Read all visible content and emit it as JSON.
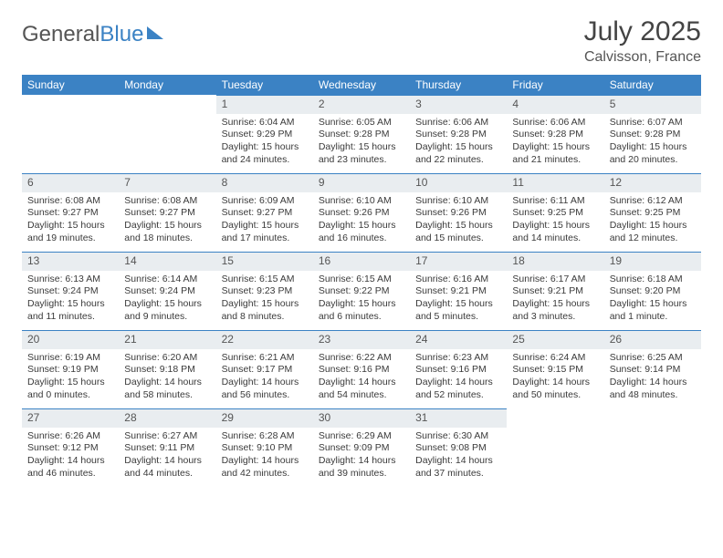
{
  "brand": {
    "part1": "General",
    "part2": "Blue"
  },
  "title": "July 2025",
  "location": "Calvisson, France",
  "colors": {
    "header_bg": "#3b82c4",
    "daynum_bg": "#e9edf0",
    "row_border": "#3b82c4",
    "text": "#3a3a3a",
    "page_bg": "#ffffff"
  },
  "weekdays": [
    "Sunday",
    "Monday",
    "Tuesday",
    "Wednesday",
    "Thursday",
    "Friday",
    "Saturday"
  ],
  "weeks": [
    [
      null,
      null,
      {
        "n": "1",
        "sr": "6:04 AM",
        "ss": "9:29 PM",
        "dl": "15 hours and 24 minutes."
      },
      {
        "n": "2",
        "sr": "6:05 AM",
        "ss": "9:28 PM",
        "dl": "15 hours and 23 minutes."
      },
      {
        "n": "3",
        "sr": "6:06 AM",
        "ss": "9:28 PM",
        "dl": "15 hours and 22 minutes."
      },
      {
        "n": "4",
        "sr": "6:06 AM",
        "ss": "9:28 PM",
        "dl": "15 hours and 21 minutes."
      },
      {
        "n": "5",
        "sr": "6:07 AM",
        "ss": "9:28 PM",
        "dl": "15 hours and 20 minutes."
      }
    ],
    [
      {
        "n": "6",
        "sr": "6:08 AM",
        "ss": "9:27 PM",
        "dl": "15 hours and 19 minutes."
      },
      {
        "n": "7",
        "sr": "6:08 AM",
        "ss": "9:27 PM",
        "dl": "15 hours and 18 minutes."
      },
      {
        "n": "8",
        "sr": "6:09 AM",
        "ss": "9:27 PM",
        "dl": "15 hours and 17 minutes."
      },
      {
        "n": "9",
        "sr": "6:10 AM",
        "ss": "9:26 PM",
        "dl": "15 hours and 16 minutes."
      },
      {
        "n": "10",
        "sr": "6:10 AM",
        "ss": "9:26 PM",
        "dl": "15 hours and 15 minutes."
      },
      {
        "n": "11",
        "sr": "6:11 AM",
        "ss": "9:25 PM",
        "dl": "15 hours and 14 minutes."
      },
      {
        "n": "12",
        "sr": "6:12 AM",
        "ss": "9:25 PM",
        "dl": "15 hours and 12 minutes."
      }
    ],
    [
      {
        "n": "13",
        "sr": "6:13 AM",
        "ss": "9:24 PM",
        "dl": "15 hours and 11 minutes."
      },
      {
        "n": "14",
        "sr": "6:14 AM",
        "ss": "9:24 PM",
        "dl": "15 hours and 9 minutes."
      },
      {
        "n": "15",
        "sr": "6:15 AM",
        "ss": "9:23 PM",
        "dl": "15 hours and 8 minutes."
      },
      {
        "n": "16",
        "sr": "6:15 AM",
        "ss": "9:22 PM",
        "dl": "15 hours and 6 minutes."
      },
      {
        "n": "17",
        "sr": "6:16 AM",
        "ss": "9:21 PM",
        "dl": "15 hours and 5 minutes."
      },
      {
        "n": "18",
        "sr": "6:17 AM",
        "ss": "9:21 PM",
        "dl": "15 hours and 3 minutes."
      },
      {
        "n": "19",
        "sr": "6:18 AM",
        "ss": "9:20 PM",
        "dl": "15 hours and 1 minute."
      }
    ],
    [
      {
        "n": "20",
        "sr": "6:19 AM",
        "ss": "9:19 PM",
        "dl": "15 hours and 0 minutes."
      },
      {
        "n": "21",
        "sr": "6:20 AM",
        "ss": "9:18 PM",
        "dl": "14 hours and 58 minutes."
      },
      {
        "n": "22",
        "sr": "6:21 AM",
        "ss": "9:17 PM",
        "dl": "14 hours and 56 minutes."
      },
      {
        "n": "23",
        "sr": "6:22 AM",
        "ss": "9:16 PM",
        "dl": "14 hours and 54 minutes."
      },
      {
        "n": "24",
        "sr": "6:23 AM",
        "ss": "9:16 PM",
        "dl": "14 hours and 52 minutes."
      },
      {
        "n": "25",
        "sr": "6:24 AM",
        "ss": "9:15 PM",
        "dl": "14 hours and 50 minutes."
      },
      {
        "n": "26",
        "sr": "6:25 AM",
        "ss": "9:14 PM",
        "dl": "14 hours and 48 minutes."
      }
    ],
    [
      {
        "n": "27",
        "sr": "6:26 AM",
        "ss": "9:12 PM",
        "dl": "14 hours and 46 minutes."
      },
      {
        "n": "28",
        "sr": "6:27 AM",
        "ss": "9:11 PM",
        "dl": "14 hours and 44 minutes."
      },
      {
        "n": "29",
        "sr": "6:28 AM",
        "ss": "9:10 PM",
        "dl": "14 hours and 42 minutes."
      },
      {
        "n": "30",
        "sr": "6:29 AM",
        "ss": "9:09 PM",
        "dl": "14 hours and 39 minutes."
      },
      {
        "n": "31",
        "sr": "6:30 AM",
        "ss": "9:08 PM",
        "dl": "14 hours and 37 minutes."
      },
      null,
      null
    ]
  ],
  "labels": {
    "sunrise": "Sunrise: ",
    "sunset": "Sunset: ",
    "daylight": "Daylight: "
  }
}
